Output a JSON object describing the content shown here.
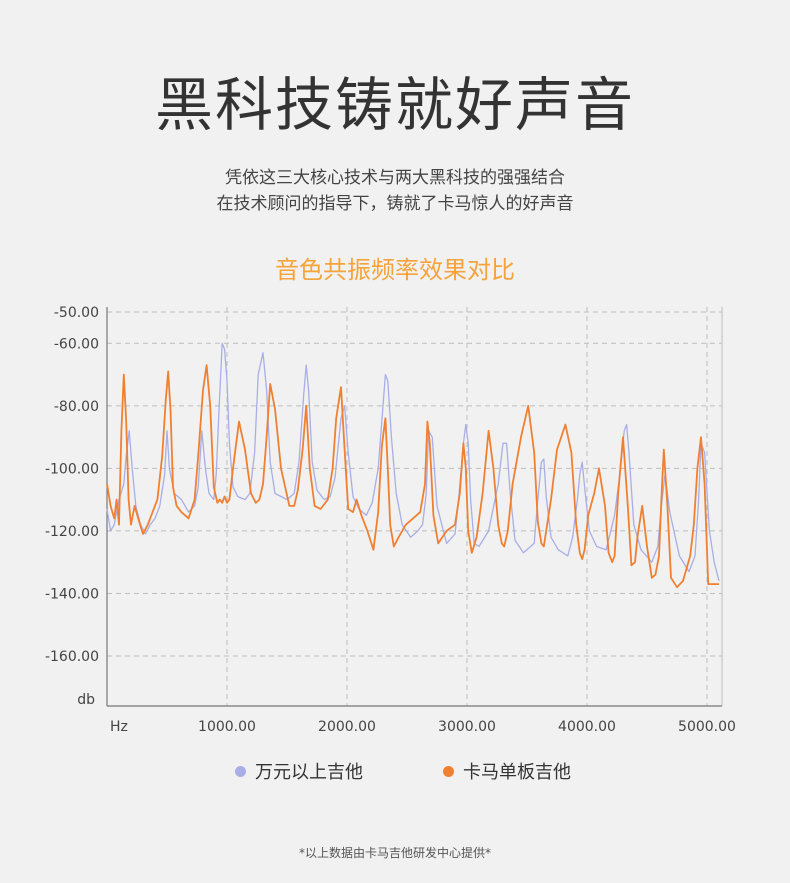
{
  "header": {
    "title": "黑科技铸就好声音",
    "subtitle_line1": "凭依这三大核心技术与两大黑科技的强强结合",
    "subtitle_line2": "在技术顾问的指导下，铸就了卡马惊人的好声音"
  },
  "chart_title": "音色共振频率效果对比",
  "footnote": "*以上数据由卡马吉他研发中心提供*",
  "colors": {
    "series_premium": "#a9aee6",
    "series_kama": "#f08030",
    "title_accent": "#f5a33a",
    "grid": "#bdbdbd",
    "axis": "#777777"
  },
  "chart_data": {
    "type": "line",
    "title": "音色共振频率效果对比",
    "xlabel": "Hz",
    "ylabel": "db",
    "xlim": [
      0,
      5100
    ],
    "ylim": [
      -177,
      -50
    ],
    "x_ticks": [
      1000,
      2000,
      3000,
      4000,
      5000
    ],
    "x_tick_labels": [
      "1000.00",
      "2000.00",
      "3000.00",
      "4000.00",
      "5000.00"
    ],
    "y_ticks": [
      -50,
      -60,
      -80,
      -100,
      -120,
      -140,
      -160
    ],
    "y_tick_labels": [
      "-50.00",
      "-60.00",
      "-80.00",
      "-100.00",
      "-120.00",
      "-140.00",
      "-160.00"
    ],
    "grid": true,
    "legend_position": "bottom-center",
    "series": [
      {
        "name": "万元以上吉他",
        "key": "premium",
        "x": [
          0,
          30,
          60,
          100,
          140,
          160,
          185,
          210,
          240,
          280,
          320,
          360,
          400,
          440,
          480,
          500,
          520,
          560,
          620,
          680,
          730,
          760,
          790,
          820,
          850,
          890,
          910,
          935,
          960,
          980,
          1000,
          1020,
          1050,
          1090,
          1150,
          1190,
          1230,
          1260,
          1300,
          1330,
          1360,
          1400,
          1450,
          1500,
          1560,
          1600,
          1640,
          1660,
          1680,
          1710,
          1750,
          1810,
          1860,
          1900,
          1950,
          1980,
          2010,
          2050,
          2100,
          2160,
          2210,
          2260,
          2300,
          2320,
          2340,
          2370,
          2410,
          2460,
          2530,
          2590,
          2630,
          2660,
          2680,
          2710,
          2750,
          2830,
          2900,
          2930,
          2970,
          2990,
          3010,
          3030,
          3060,
          3100,
          3180,
          3260,
          3300,
          3330,
          3360,
          3400,
          3470,
          3560,
          3590,
          3620,
          3640,
          3660,
          3700,
          3760,
          3840,
          3880,
          3920,
          3940,
          3960,
          3980,
          4020,
          4080,
          4160,
          4230,
          4280,
          4310,
          4330,
          4350,
          4390,
          4450,
          4540,
          4590,
          4620,
          4650,
          4690,
          4770,
          4850,
          4900,
          4930,
          4950,
          4980,
          5020,
          5060,
          5100
        ],
        "y": [
          -113,
          -120,
          -118,
          -110,
          -105,
          -96,
          -88,
          -100,
          -112,
          -118,
          -121,
          -118,
          -116,
          -112,
          -102,
          -88,
          -100,
          -108,
          -110,
          -114,
          -112,
          -106,
          -88,
          -100,
          -108,
          -110,
          -102,
          -80,
          -60,
          -62,
          -72,
          -92,
          -106,
          -109,
          -110,
          -108,
          -95,
          -70,
          -63,
          -75,
          -98,
          -108,
          -109,
          -110,
          -108,
          -98,
          -76,
          -67,
          -75,
          -98,
          -107,
          -110,
          -109,
          -103,
          -84,
          -80,
          -95,
          -109,
          -113,
          -115,
          -111,
          -100,
          -80,
          -70,
          -72,
          -90,
          -108,
          -118,
          -122,
          -120,
          -118,
          -108,
          -88,
          -90,
          -112,
          -124,
          -121,
          -110,
          -92,
          -86,
          -92,
          -110,
          -124,
          -125,
          -120,
          -105,
          -92,
          -92,
          -108,
          -123,
          -127,
          -124,
          -110,
          -98,
          -97,
          -109,
          -122,
          -126,
          -128,
          -122,
          -110,
          -102,
          -98,
          -106,
          -120,
          -125,
          -126,
          -115,
          -100,
          -88,
          -86,
          -95,
          -118,
          -126,
          -130,
          -125,
          -112,
          -102,
          -114,
          -128,
          -133,
          -128,
          -110,
          -92,
          -95,
          -120,
          -130,
          -136
        ]
      },
      {
        "name": "卡马单板吉他",
        "key": "kama",
        "x": [
          0,
          30,
          60,
          80,
          100,
          120,
          140,
          160,
          180,
          200,
          230,
          260,
          300,
          340,
          380,
          420,
          460,
          490,
          510,
          530,
          550,
          580,
          620,
          680,
          730,
          760,
          800,
          830,
          860,
          890,
          920,
          940,
          960,
          980,
          1000,
          1020,
          1050,
          1100,
          1150,
          1200,
          1240,
          1270,
          1300,
          1330,
          1360,
          1400,
          1450,
          1520,
          1560,
          1590,
          1630,
          1660,
          1690,
          1730,
          1780,
          1840,
          1880,
          1910,
          1950,
          1980,
          2010,
          2050,
          2080,
          2120,
          2170,
          2220,
          2260,
          2290,
          2320,
          2340,
          2360,
          2390,
          2430,
          2490,
          2550,
          2610,
          2650,
          2670,
          2690,
          2720,
          2760,
          2830,
          2900,
          2940,
          2970,
          2990,
          3010,
          3040,
          3080,
          3130,
          3180,
          3220,
          3260,
          3290,
          3310,
          3340,
          3380,
          3450,
          3510,
          3560,
          3590,
          3620,
          3640,
          3660,
          3700,
          3750,
          3820,
          3870,
          3910,
          3940,
          3960,
          3980,
          4010,
          4060,
          4100,
          4150,
          4180,
          4210,
          4230,
          4260,
          4300,
          4340,
          4370,
          4400,
          4420,
          4460,
          4500,
          4540,
          4570,
          4600,
          4620,
          4640,
          4670,
          4700,
          4750,
          4800,
          4830,
          4860,
          4890,
          4920,
          4950,
          4980,
          5010,
          5050,
          5100
        ],
        "y": [
          -105,
          -112,
          -116,
          -110,
          -118,
          -88,
          -70,
          -85,
          -110,
          -118,
          -112,
          -116,
          -121,
          -118,
          -114,
          -110,
          -96,
          -78,
          -69,
          -82,
          -106,
          -112,
          -114,
          -116,
          -110,
          -96,
          -75,
          -67,
          -80,
          -106,
          -111,
          -110,
          -111,
          -109,
          -111,
          -110,
          -100,
          -85,
          -94,
          -108,
          -111,
          -110,
          -105,
          -90,
          -73,
          -81,
          -100,
          -112,
          -112,
          -107,
          -94,
          -80,
          -100,
          -112,
          -113,
          -110,
          -100,
          -84,
          -74,
          -94,
          -113,
          -114,
          -110,
          -115,
          -120,
          -126,
          -114,
          -93,
          -84,
          -100,
          -118,
          -125,
          -122,
          -118,
          -116,
          -114,
          -105,
          -85,
          -92,
          -115,
          -124,
          -120,
          -118,
          -108,
          -92,
          -100,
          -120,
          -127,
          -122,
          -108,
          -88,
          -100,
          -118,
          -124,
          -125,
          -120,
          -105,
          -90,
          -80,
          -95,
          -117,
          -124,
          -125,
          -120,
          -110,
          -94,
          -86,
          -95,
          -118,
          -127,
          -129,
          -126,
          -115,
          -108,
          -100,
          -112,
          -127,
          -130,
          -128,
          -108,
          -90,
          -112,
          -131,
          -130,
          -122,
          -112,
          -125,
          -135,
          -134,
          -128,
          -110,
          -94,
          -112,
          -135,
          -138,
          -136,
          -132,
          -128,
          -118,
          -100,
          -90,
          -105,
          -137,
          -137,
          -137
        ]
      }
    ]
  },
  "legend": [
    {
      "label": "万元以上吉他",
      "color": "#a9aee6"
    },
    {
      "label": "卡马单板吉他",
      "color": "#f08030"
    }
  ]
}
